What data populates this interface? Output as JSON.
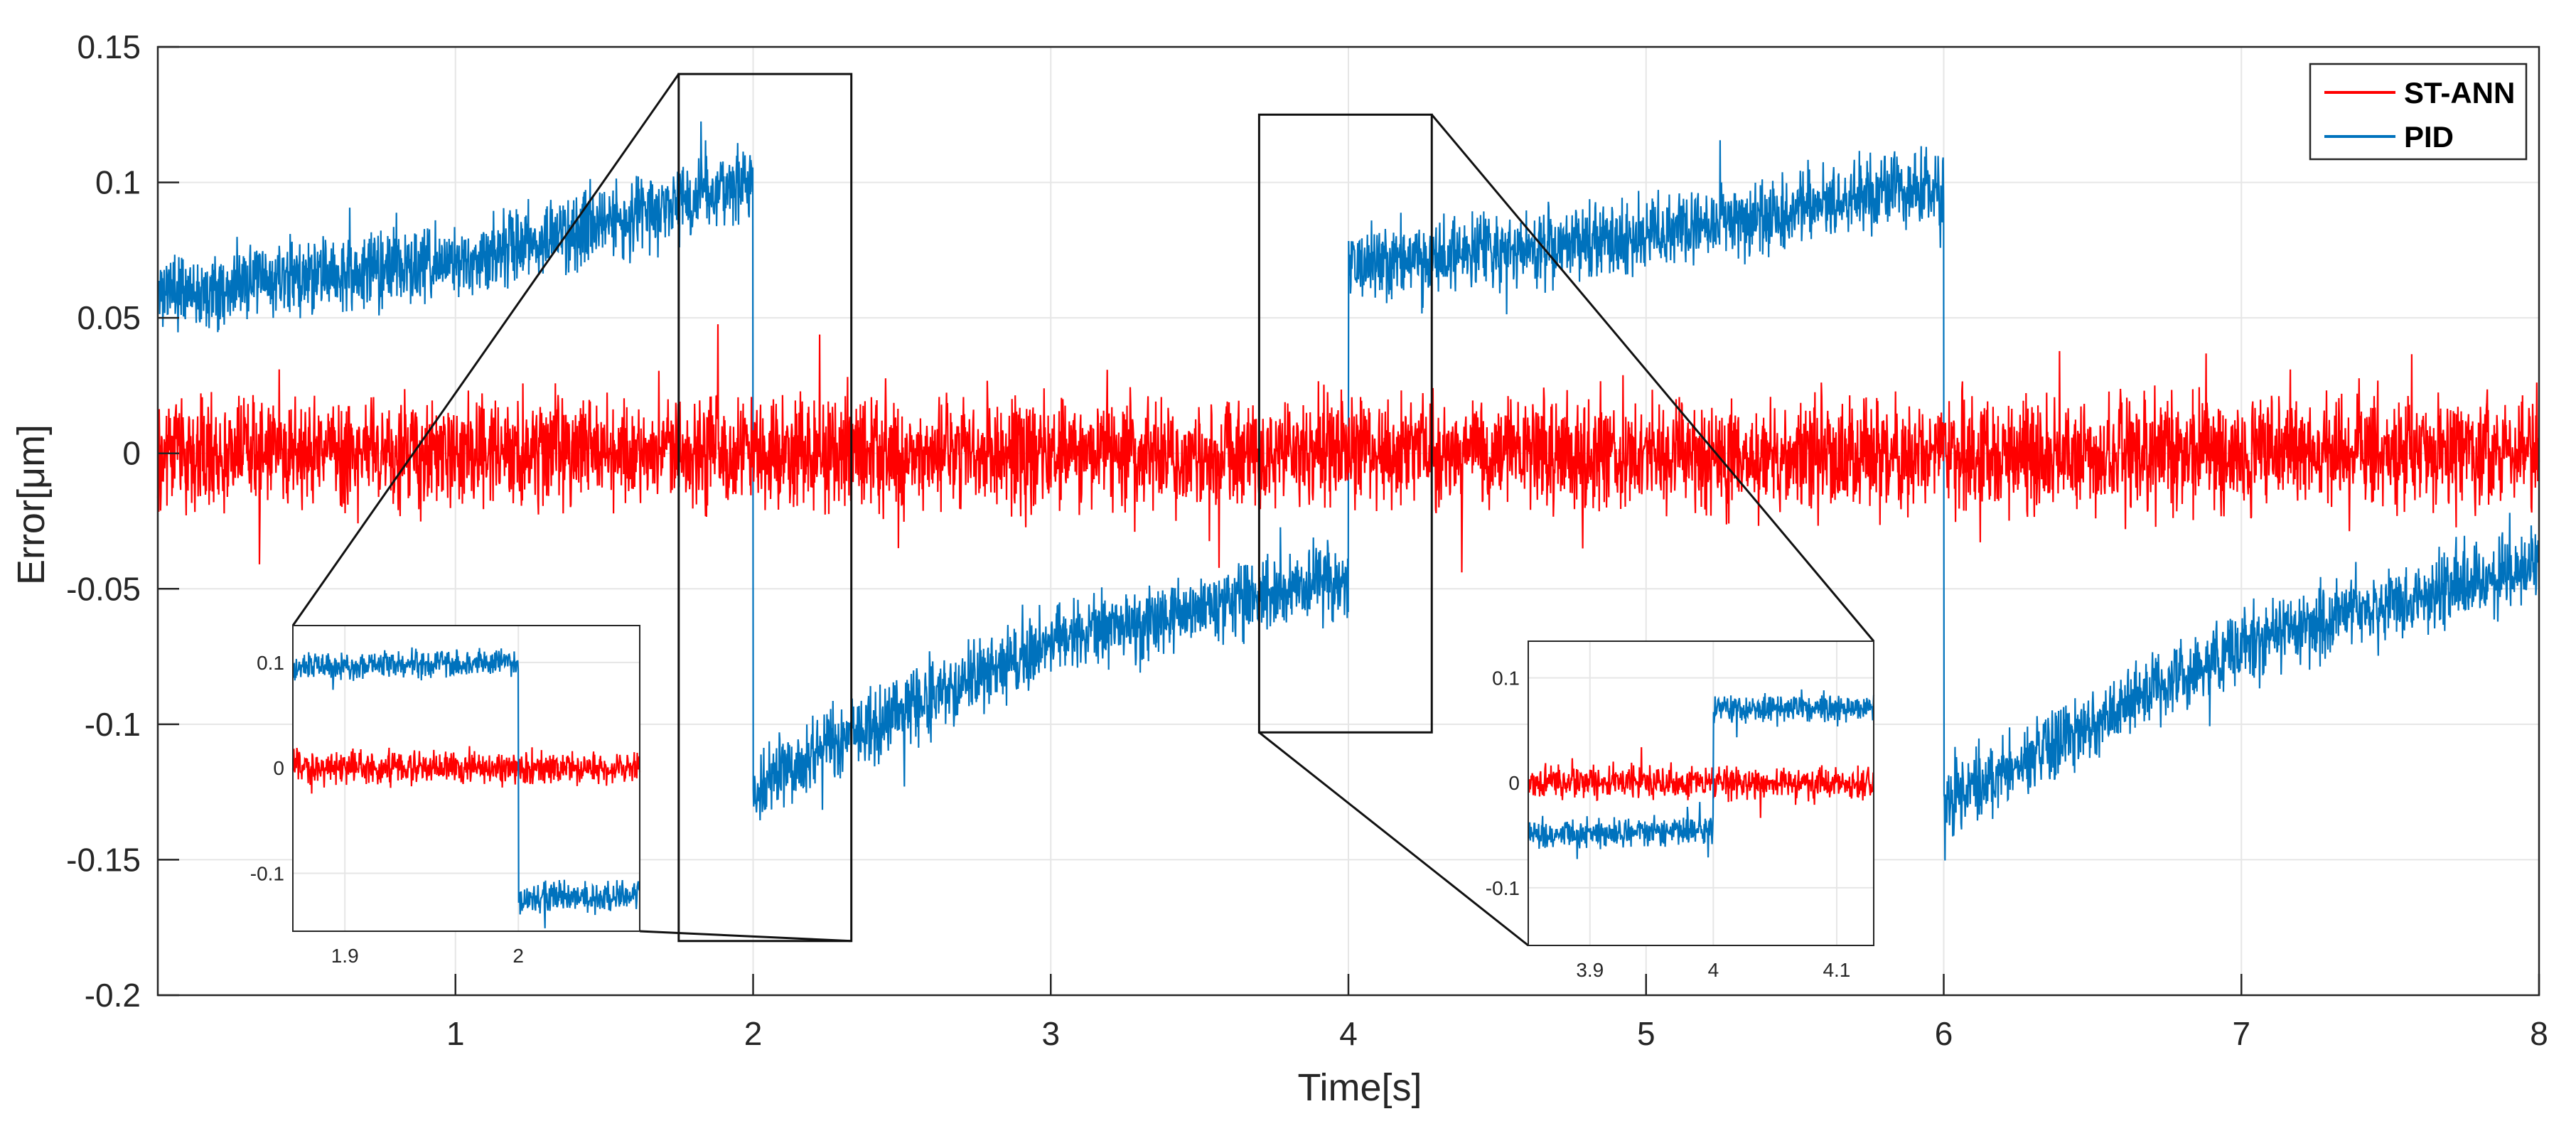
{
  "chart_data": {
    "type": "line",
    "title": "",
    "xlabel": "Time[s]",
    "ylabel": "Error[μm]",
    "xlim": [
      0,
      8
    ],
    "ylim": [
      -0.2,
      0.15
    ],
    "grid": true,
    "legend_position": "top-right",
    "xticks": [
      1,
      2,
      3,
      4,
      5,
      6,
      7,
      8
    ],
    "xtick_labels": [
      "1",
      "2",
      "3",
      "4",
      "5",
      "6",
      "7",
      "8"
    ],
    "yticks": [
      0.15,
      0.1,
      0.05,
      0,
      -0.05,
      -0.1,
      -0.15,
      -0.2
    ],
    "ytick_labels": [
      "0.15",
      "0.1",
      "0.05",
      "0",
      "-0.05",
      "-0.1",
      "-0.15",
      "-0.2"
    ],
    "series": [
      {
        "name": "ST-ANN",
        "color": "#ff0000",
        "description": "noise around zero over the full time range",
        "mean_profile": [
          [
            0,
            0.0
          ],
          [
            8,
            0.0
          ]
        ],
        "noise_amplitude": 0.03
      },
      {
        "name": "PID",
        "color": "#0072bd",
        "description": "ramping offsets with steps at t=2, 4, 6",
        "mean_profile": [
          [
            0,
            0.06
          ],
          [
            1,
            0.07
          ],
          [
            2,
            0.1
          ],
          [
            2.0,
            -0.125
          ],
          [
            2.3,
            -0.105
          ],
          [
            3,
            -0.07
          ],
          [
            4,
            -0.045
          ],
          [
            4.0,
            0.07
          ],
          [
            5,
            0.08
          ],
          [
            6,
            0.1
          ],
          [
            6.0,
            -0.13
          ],
          [
            7,
            -0.07
          ],
          [
            8,
            -0.04
          ]
        ],
        "noise_amplitude": 0.02
      }
    ],
    "insets": [
      {
        "name": "inset-1",
        "zoom_xlim": [
          1.75,
          2.33
        ],
        "zoom_ylim": [
          -0.18,
          0.14
        ],
        "xlim": [
          1.87,
          2.07
        ],
        "ylim": [
          -0.155,
          0.135
        ],
        "xticks": [
          1.9,
          2
        ],
        "xtick_labels": [
          "1.9",
          "2"
        ],
        "yticks": [
          0.1,
          0,
          -0.1
        ],
        "ytick_labels": [
          "0.1",
          "0",
          "-0.1"
        ]
      },
      {
        "name": "inset-2",
        "zoom_xlim": [
          3.7,
          4.28
        ],
        "zoom_ylim": [
          -0.103,
          0.125
        ],
        "xlim": [
          3.85,
          4.13
        ],
        "ylim": [
          -0.155,
          0.135
        ],
        "xticks": [
          3.9,
          4,
          4.1
        ],
        "xtick_labels": [
          "3.9",
          "4",
          "4.1"
        ],
        "yticks": [
          0.1,
          0,
          -0.1
        ],
        "ytick_labels": [
          "0.1",
          "0",
          "-0.1"
        ]
      }
    ]
  }
}
